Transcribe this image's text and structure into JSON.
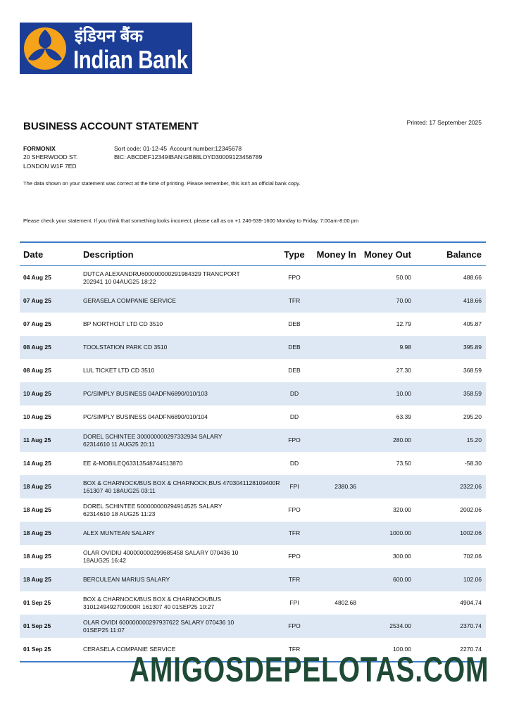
{
  "logo": {
    "hindi": "इंडियन बैंक",
    "english": "Indian Bank"
  },
  "header": {
    "title": "BUSINESS ACCOUNT STATEMENT",
    "printed": "Printed: 17 September 2025"
  },
  "customer": {
    "name": "FORMONIX",
    "address": [
      "20 SHERWOOD ST.",
      "LONDON W1F 7ED"
    ]
  },
  "account": {
    "sort_code": "Sort code: 01-12-45",
    "account_number": "Account number:12345678",
    "bic": "BIC: ABCDEF12349",
    "iban": "IBAN:GB88LOYD30009123456789"
  },
  "notices": [
    "The data shown on your statement was correct at the time of printing. Please remember, this isn't an official bank copy.",
    "Please check your statement. If you think that something looks incorrect, please call as on +1 246-539-1600 Monday to Friday, 7:00am-8:00 pm"
  ],
  "table": {
    "columns": [
      "Date",
      "Description",
      "Type",
      "Money In",
      "Money Out",
      "Balance"
    ],
    "rows": [
      {
        "date": "04 Aug 25",
        "description": "DUTCA ALEXANDRU600000000291984329 TRANCPORT\n202941 10 04AUG25 18:22",
        "type": "FPO",
        "money_out": "50.00",
        "balance": "488.66"
      },
      {
        "date": "07 Aug 25",
        "description": "GERASELA COMPANIE SERVICE",
        "type": "TFR",
        "money_out": "70.00",
        "balance": "418.66"
      },
      {
        "date": "07 Aug 25",
        "description": "BP NORTHOLT LTD CD 3510",
        "type": "DEB",
        "money_out": "12.79",
        "balance": "405.87"
      },
      {
        "date": "08 Aug 25",
        "description": "TOOLSTATION PARK CD 3510",
        "type": "DEB",
        "money_out": "9.98",
        "balance": "395.89"
      },
      {
        "date": "08 Aug 25",
        "description": "LUL TICKET LTD CD 3510",
        "type": "DEB",
        "money_out": "27.30",
        "balance": "368.59"
      },
      {
        "date": "10 Aug 25",
        "description": "PC/SIMPLY BUSINESS 04ADFN6890/010/103",
        "type": "DD",
        "money_out": "10.00",
        "balance": "358.59"
      },
      {
        "date": "10 Aug 25",
        "description": "PC/SIMPLY BUSINESS 04ADFN6890/010/104",
        "type": "DD",
        "money_out": "63.39",
        "balance": "295.20"
      },
      {
        "date": "11 Aug 25",
        "description": "DOREL SCHINTEE 300000000297332934 SALARY\n62314610 11 AUG25 20:11",
        "type": "FPO",
        "money_out": "280.00",
        "balance": "15.20"
      },
      {
        "date": "14 Aug 25",
        "description": "EE &-MOBILEQ63313548744513870",
        "type": "DD",
        "money_out": "73.50",
        "balance": "-58.30"
      },
      {
        "date": "18 Aug 25",
        "description": "BOX & CHARNOCK/BUS BOX & CHARNOCK,BUS 4703041128109400R\n161307 40 18AUG25 03:11",
        "type": "FPI",
        "money_in": "2380.36",
        "balance": "2322.06"
      },
      {
        "date": "18 Aug 25",
        "description": "DOREL SCHINTEE 500000000294914525 SALARY\n62314610 18 AUG25 11:23",
        "type": "FPO",
        "money_out": "320.00",
        "balance": "2002.06"
      },
      {
        "date": "18 Aug 25",
        "description": "ALEX MUNTEAN SALARY",
        "type": "TFR",
        "money_out": "1000.00",
        "balance": "1002.06"
      },
      {
        "date": "18 Aug 25",
        "description": "OLAR OVIDIU 400000000299685458 SALARY 070436 10\n18AUG25 16:42",
        "type": "FPO",
        "money_out": "300.00",
        "balance": "702.06"
      },
      {
        "date": "18 Aug 25",
        "description": "BERCULEAN MARIUS SALARY",
        "type": "TFR",
        "money_out": "600.00",
        "balance": "102.06"
      },
      {
        "date": "01 Sep 25",
        "description": "BOX & CHARNOCK/BUS BOX & CHARNOCK/BUS\n3101249492709000R 161307 40 01SEP25 10:27",
        "type": "FPI",
        "money_in": "4802.68",
        "balance": "4904.74"
      },
      {
        "date": "01 Sep 25",
        "description": "OLAR OVIDI 600000000297937622 SALARY 070436 10\n01SEP25 11:07",
        "type": "FPO",
        "money_out": "2534.00",
        "balance": "2370.74"
      },
      {
        "date": "01 Sep 25",
        "description": "CERASELA COMPANIE SERVICE",
        "type": "TFR",
        "money_out": "100.00",
        "balance": "2270.74"
      }
    ]
  },
  "watermark": "AMIGOSDEPELOTAS.COM"
}
